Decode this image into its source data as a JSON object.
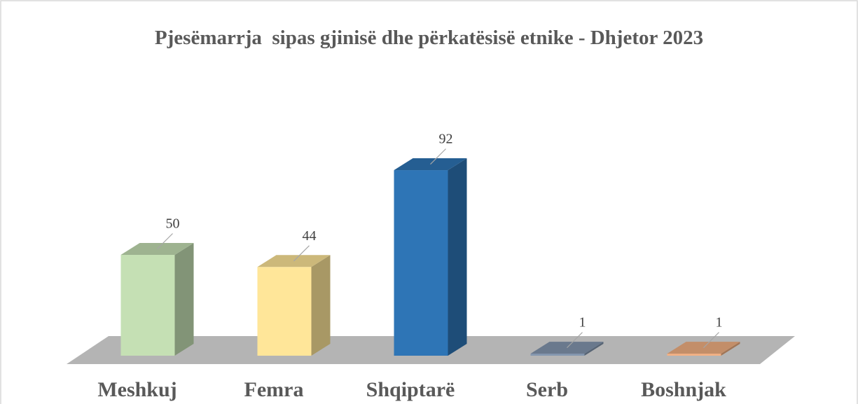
{
  "chart_data": {
    "type": "bar3d",
    "title": "Pjesëmarrja  sipas gjinisë dhe përkatësisë etnike - Dhjetor 2023",
    "categories": [
      "Meshkuj",
      "Femra",
      "Shqiptarë",
      "Serb",
      "Boshnjak"
    ],
    "values": [
      50,
      44,
      92,
      1,
      1
    ],
    "colors": [
      "#c5e0b4",
      "#ffe699",
      "#2e75b6",
      "#8497b0",
      "#f4b183"
    ]
  }
}
